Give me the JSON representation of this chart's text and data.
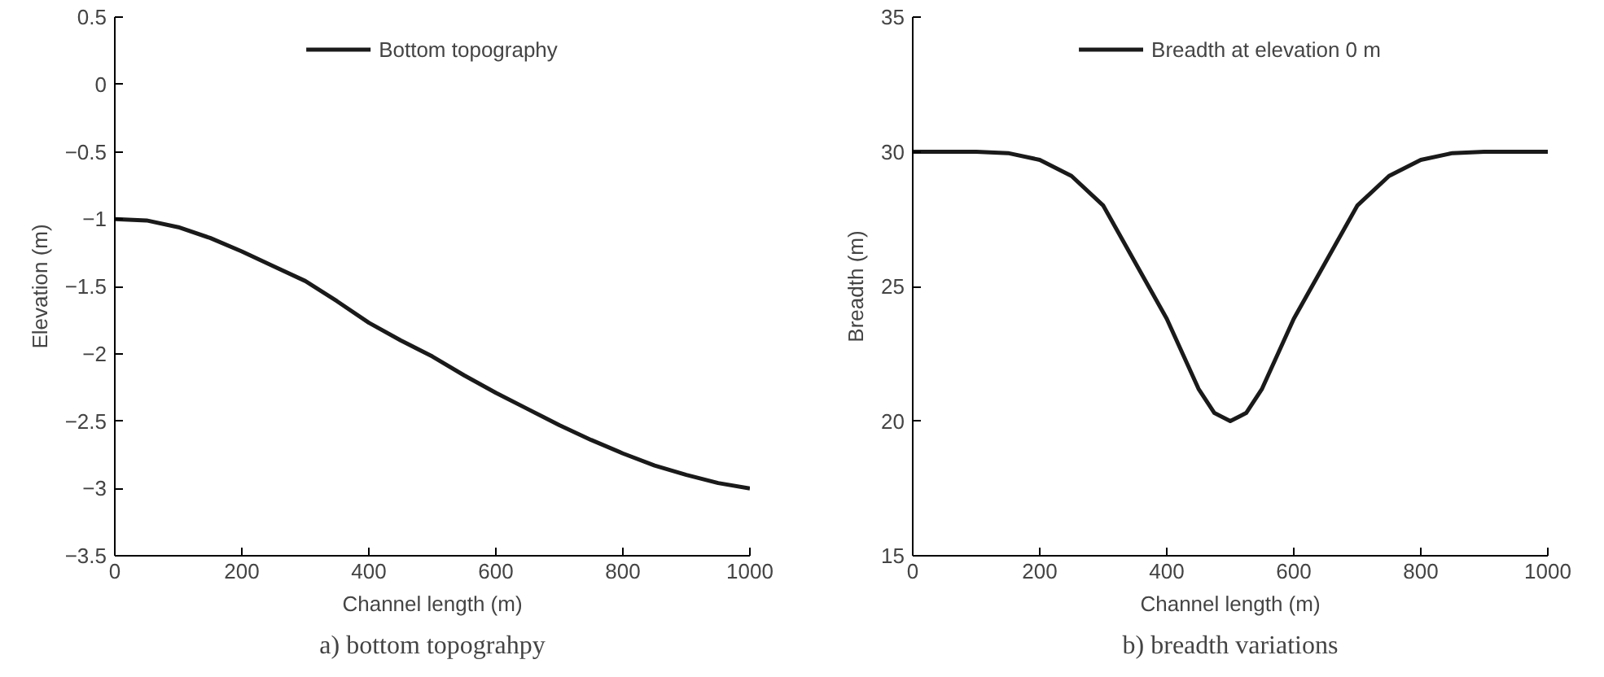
{
  "chart_data": [
    {
      "type": "line",
      "title": "a) bottom topograhpy",
      "xlabel": "Channel length (m)",
      "ylabel": "Elevation (m)",
      "x": [
        0,
        50,
        100,
        150,
        200,
        250,
        300,
        350,
        400,
        450,
        500,
        550,
        600,
        650,
        700,
        750,
        800,
        850,
        900,
        950,
        1000
      ],
      "series": [
        {
          "name": "Bottom topography",
          "color": "#1a1a1a",
          "values": [
            -1.0,
            -1.01,
            -1.06,
            -1.14,
            -1.24,
            -1.35,
            -1.46,
            -1.61,
            -1.77,
            -1.9,
            -2.02,
            -2.16,
            -2.29,
            -2.41,
            -2.53,
            -2.64,
            -2.74,
            -2.83,
            -2.9,
            -2.96,
            -3.0
          ]
        }
      ],
      "xlim": [
        0,
        1000
      ],
      "xticks": [
        0,
        200,
        400,
        600,
        800,
        1000
      ],
      "ylim": [
        -3.5,
        0.5
      ],
      "yticks": [
        {
          "value": -3.5,
          "label": "−3.5"
        },
        {
          "value": -3,
          "label": "−3"
        },
        {
          "value": -2.5,
          "label": "−2.5"
        },
        {
          "value": -2,
          "label": "−2"
        },
        {
          "value": -1.5,
          "label": "−1.5"
        },
        {
          "value": -1,
          "label": "−1"
        },
        {
          "value": -0.5,
          "label": "−0.5"
        },
        0,
        0.5
      ],
      "legend": "top",
      "grid": false,
      "marker": "none",
      "line_style": "solid"
    },
    {
      "type": "line",
      "title": "b) breadth variations",
      "xlabel": "Channel length (m)",
      "ylabel": "Breadth (m)",
      "x": [
        0,
        50,
        100,
        150,
        200,
        250,
        300,
        350,
        400,
        450,
        475,
        500,
        525,
        550,
        600,
        650,
        700,
        750,
        800,
        850,
        900,
        950,
        1000
      ],
      "series": [
        {
          "name": "Breadth at elevation 0 m",
          "color": "#1a1a1a",
          "values": [
            30,
            30,
            30,
            29.95,
            29.7,
            29.1,
            28.0,
            25.9,
            23.8,
            21.2,
            20.3,
            20,
            20.3,
            21.2,
            23.8,
            25.9,
            28.0,
            29.1,
            29.7,
            29.95,
            30,
            30,
            30
          ]
        }
      ],
      "xlim": [
        0,
        1000
      ],
      "xticks": [
        0,
        200,
        400,
        600,
        800,
        1000
      ],
      "ylim": [
        15,
        35
      ],
      "yticks": [
        15,
        20,
        25,
        30,
        35
      ],
      "legend": "top",
      "grid": false,
      "marker": "none",
      "line_style": "solid"
    }
  ]
}
